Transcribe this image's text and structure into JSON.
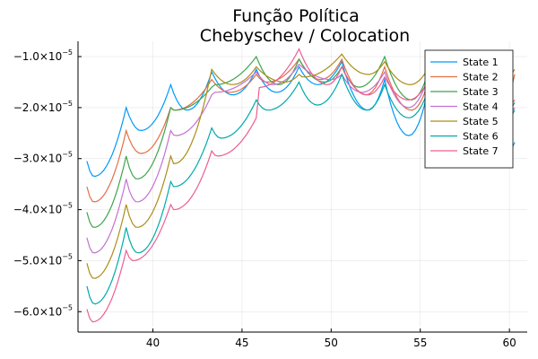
{
  "chart_data": {
    "type": "line",
    "title": "Função Política",
    "subtitle": "Chebyschev / Colocation",
    "xlabel": "",
    "ylabel": "",
    "xlim": [
      35.8,
      61.0
    ],
    "ylim": [
      -6.4e-05,
      -7e-06
    ],
    "xticks": [
      40,
      45,
      50,
      55,
      60
    ],
    "xtick_labels": [
      "40",
      "45",
      "50",
      "55",
      "60"
    ],
    "yticks": [
      -6e-05,
      -5e-05,
      -4e-05,
      -3e-05,
      -2e-05,
      -1e-05
    ],
    "ytick_mantissa": [
      "−6.0×10",
      "−5.0×10",
      "−4.0×10",
      "−3.0×10",
      "−2.0×10",
      "−1.0×10"
    ],
    "ytick_exponent": "−5",
    "grid": true,
    "legend_position": "top-right",
    "x_start": 36.3,
    "x_end": 60.3,
    "kink_points": [
      38.5,
      41.0,
      43.3,
      45.8,
      48.2,
      50.6,
      53.0,
      55.4,
      57.8
    ],
    "series": [
      {
        "name": "State 1",
        "color": "#009AFA",
        "start": -3.05e-05,
        "peaks": [
          -2e-05,
          -1.55e-05,
          -1.3e-05,
          -1.25e-05,
          -1.2e-05,
          -1.1e-05,
          -1.45e-05,
          -1.7e-05,
          -1.8e-05
        ],
        "troughs": [
          -3.35e-05,
          -2.45e-05,
          -2.05e-05,
          -1.75e-05,
          -1.7e-05,
          -1.55e-05,
          -2.05e-05,
          -2.55e-05,
          -2.7e-05,
          -2.85e-05
        ],
        "end": -2.68e-05
      },
      {
        "name": "State 2",
        "color": "#E36F47",
        "start": -3.55e-05,
        "peaks": [
          -2.45e-05,
          -2e-05,
          -1.45e-05,
          -1.35e-05,
          -1.05e-05,
          -1.05e-05,
          -1.2e-05,
          -1.55e-05,
          -1.7e-05
        ],
        "troughs": [
          -3.85e-05,
          -2.9e-05,
          -2.05e-05,
          -1.7e-05,
          -1.5e-05,
          -1.45e-05,
          -1.75e-05,
          -2.05e-05,
          -2.25e-05,
          -2.45e-05
        ],
        "end": -1.35e-05
      },
      {
        "name": "State 3",
        "color": "#3EA44E",
        "start": -4.05e-05,
        "peaks": [
          -2.95e-05,
          -2e-05,
          -1.6e-05,
          -1e-05,
          -1.05e-05,
          -1.2e-05,
          -1e-05,
          -1.35e-05,
          -1.55e-05
        ],
        "troughs": [
          -4.35e-05,
          -3.4e-05,
          -2.05e-05,
          -1.55e-05,
          -1.55e-05,
          -1.5e-05,
          -1.6e-05,
          -1.85e-05,
          -1.95e-05,
          -2.15e-05
        ],
        "end": -1.9e-05
      },
      {
        "name": "State 4",
        "color": "#C371D2",
        "start": -4.55e-05,
        "peaks": [
          -3.4e-05,
          -2.45e-05,
          -1.75e-05,
          -1.3e-05,
          -1.15e-05,
          -1.35e-05,
          -1.3e-05,
          -1.45e-05,
          -1.65e-05
        ],
        "troughs": [
          -4.85e-05,
          -3.85e-05,
          -2.55e-05,
          -1.7e-05,
          -1.55e-05,
          -1.45e-05,
          -1.7e-05,
          -2e-05,
          -2.1e-05,
          -2.2e-05
        ],
        "end": -2e-05
      },
      {
        "name": "State 5",
        "color": "#AC8D18",
        "start": -5.05e-05,
        "peaks": [
          -3.9e-05,
          -2.95e-05,
          -1.25e-05,
          -1.2e-05,
          -1.35e-05,
          -9.5e-06,
          -1.1e-05,
          -1.25e-05,
          -1.4e-05
        ],
        "troughs": [
          -5.35e-05,
          -4.35e-05,
          -3.1e-05,
          -1.55e-05,
          -1.5e-05,
          -1.4e-05,
          -1.35e-05,
          -1.55e-05,
          -1.75e-05,
          -1.65e-05
        ],
        "end": -1.25e-05
      },
      {
        "name": "State 6",
        "color": "#00A9AD",
        "start": -5.5e-05,
        "peaks": [
          -4.35e-05,
          -3.45e-05,
          -2.4e-05,
          -1.85e-05,
          -1.5e-05,
          -1.35e-05,
          -1.55e-05,
          -1.7e-05,
          -1.8e-05
        ],
        "troughs": [
          -5.85e-05,
          -4.85e-05,
          -3.55e-05,
          -2.6e-05,
          -2.05e-05,
          -1.95e-05,
          -2.05e-05,
          -2.2e-05,
          -2.3e-05,
          -2.35e-05
        ],
        "end": -2.05e-05
      },
      {
        "name": "State 7",
        "color": "#ED5E93",
        "start": -5.95e-05,
        "peaks": [
          -4.8e-05,
          -3.9e-05,
          -2.85e-05,
          -2.2e-05,
          -8.5e-06,
          -1.2e-05,
          -1.4e-05,
          -1.5e-05,
          -1.6e-05
        ],
        "troughs": [
          -6.2e-05,
          -5e-05,
          -4e-05,
          -2.95e-05,
          -1.6e-05,
          -1.55e-05,
          -1.75e-05,
          -1.85e-05,
          -1.95e-05,
          -2e-05
        ],
        "end": -1.85e-05
      }
    ]
  }
}
